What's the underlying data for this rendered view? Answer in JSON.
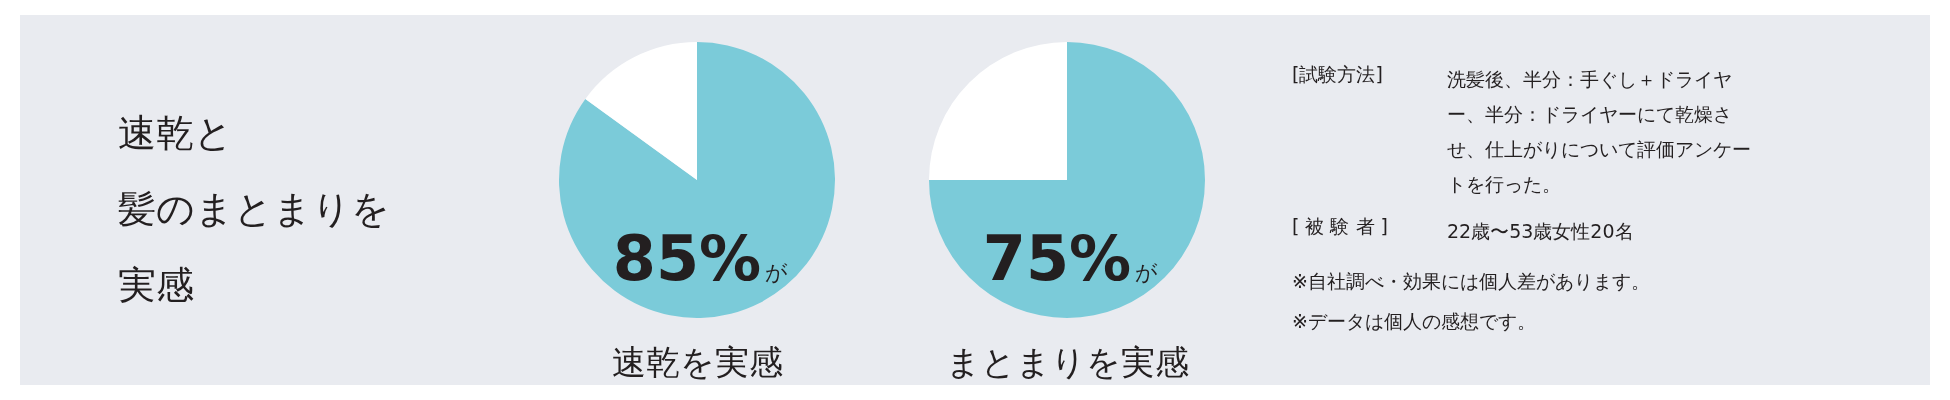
{
  "chart_data": [
    {
      "type": "other",
      "annotations": [
        "速乾と",
        "髪のまとまりを",
        "実感"
      ]
    },
    {
      "type": "pie",
      "categories": [
        null,
        null
      ],
      "values": [
        85,
        15
      ],
      "colors": [
        "#7bcbd9",
        "#ffffff"
      ],
      "value_labels": [
        "85%",
        null
      ],
      "annotations": [
        "が",
        "速乾を実感"
      ]
    },
    {
      "type": "pie",
      "categories": [
        null,
        null
      ],
      "values": [
        75,
        25
      ],
      "colors": [
        "#7bcbd9",
        "#ffffff"
      ],
      "value_labels": [
        "75%",
        null
      ],
      "annotations": [
        "が",
        "まとまりを実感"
      ]
    },
    {
      "type": "other",
      "annotations": [
        "[試験方法]",
        "洗髪後、半分：手ぐし＋ドライヤー、半分：ドライヤーにて乾燥させ、仕上がりについて評価アンケートを行った。",
        "[ 被 験 者 ]",
        "22歳〜53歳女性20名",
        "※自社調べ・効果には個人差があります。",
        "※データは個人の感想です。"
      ]
    }
  ]
}
